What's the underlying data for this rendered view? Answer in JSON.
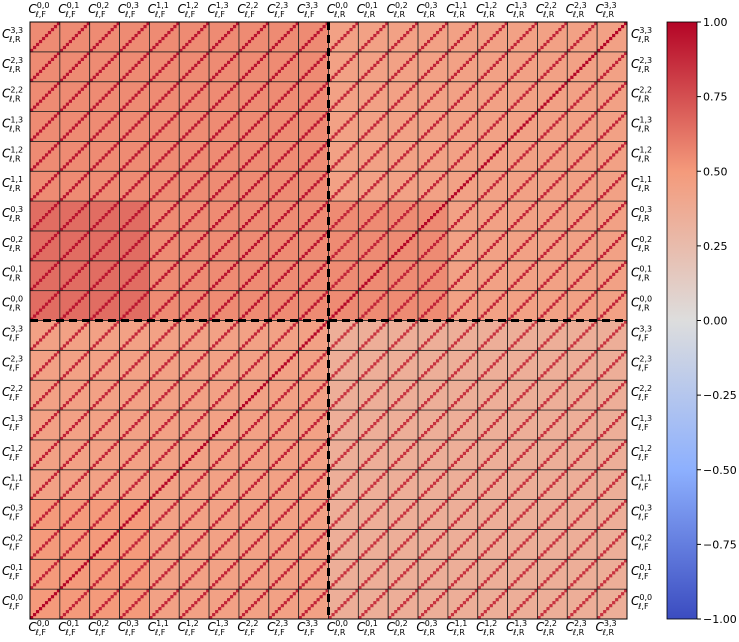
{
  "chart_data": {
    "type": "heatmap",
    "colormap": "coolwarm",
    "clim": [
      -1,
      1
    ],
    "categories": [
      {
        "main": "C",
        "sup": "0,0",
        "sub": "ℓ,F"
      },
      {
        "main": "C",
        "sup": "0,1",
        "sub": "ℓ,F"
      },
      {
        "main": "C",
        "sup": "0,2",
        "sub": "ℓ,F"
      },
      {
        "main": "C",
        "sup": "0,3",
        "sub": "ℓ,F"
      },
      {
        "main": "C",
        "sup": "1,1",
        "sub": "ℓ,F"
      },
      {
        "main": "C",
        "sup": "1,2",
        "sub": "ℓ,F"
      },
      {
        "main": "C",
        "sup": "1,3",
        "sub": "ℓ,F"
      },
      {
        "main": "C",
        "sup": "2,2",
        "sub": "ℓ,F"
      },
      {
        "main": "C",
        "sup": "2,3",
        "sub": "ℓ,F"
      },
      {
        "main": "C",
        "sup": "3,3",
        "sub": "ℓ,F"
      },
      {
        "main": "C",
        "sup": "0,0",
        "sub": "ℓ,R"
      },
      {
        "main": "C",
        "sup": "0,1",
        "sub": "ℓ,R"
      },
      {
        "main": "C",
        "sup": "0,2",
        "sub": "ℓ,R"
      },
      {
        "main": "C",
        "sup": "0,3",
        "sub": "ℓ,R"
      },
      {
        "main": "C",
        "sup": "1,1",
        "sub": "ℓ,R"
      },
      {
        "main": "C",
        "sup": "1,2",
        "sub": "ℓ,R"
      },
      {
        "main": "C",
        "sup": "1,3",
        "sub": "ℓ,R"
      },
      {
        "main": "C",
        "sup": "2,2",
        "sub": "ℓ,R"
      },
      {
        "main": "C",
        "sup": "2,3",
        "sub": "ℓ,R"
      },
      {
        "main": "C",
        "sup": "3,3",
        "sub": "ℓ,R"
      }
    ],
    "values": [
      [
        0.5,
        0.5,
        0.5,
        0.5,
        0.45,
        0.45,
        0.45,
        0.45,
        0.45,
        0.45,
        0.35,
        0.35,
        0.35,
        0.35,
        0.35,
        0.35,
        0.35,
        0.35,
        0.35,
        0.35
      ],
      [
        0.5,
        0.5,
        0.5,
        0.5,
        0.45,
        0.45,
        0.45,
        0.45,
        0.45,
        0.45,
        0.35,
        0.35,
        0.35,
        0.35,
        0.35,
        0.35,
        0.35,
        0.35,
        0.35,
        0.35
      ],
      [
        0.5,
        0.5,
        0.5,
        0.5,
        0.45,
        0.45,
        0.45,
        0.45,
        0.45,
        0.45,
        0.35,
        0.35,
        0.35,
        0.35,
        0.35,
        0.35,
        0.35,
        0.35,
        0.35,
        0.35
      ],
      [
        0.5,
        0.5,
        0.5,
        0.5,
        0.45,
        0.45,
        0.45,
        0.45,
        0.45,
        0.45,
        0.35,
        0.35,
        0.35,
        0.35,
        0.35,
        0.35,
        0.35,
        0.35,
        0.35,
        0.35
      ],
      [
        0.45,
        0.45,
        0.45,
        0.45,
        0.45,
        0.45,
        0.45,
        0.45,
        0.45,
        0.45,
        0.35,
        0.35,
        0.35,
        0.35,
        0.35,
        0.35,
        0.35,
        0.35,
        0.35,
        0.35
      ],
      [
        0.45,
        0.45,
        0.45,
        0.45,
        0.45,
        0.45,
        0.45,
        0.45,
        0.45,
        0.45,
        0.35,
        0.35,
        0.35,
        0.35,
        0.35,
        0.35,
        0.35,
        0.35,
        0.35,
        0.35
      ],
      [
        0.45,
        0.45,
        0.45,
        0.45,
        0.45,
        0.45,
        0.45,
        0.45,
        0.45,
        0.45,
        0.35,
        0.35,
        0.35,
        0.35,
        0.35,
        0.35,
        0.35,
        0.35,
        0.35,
        0.35
      ],
      [
        0.45,
        0.45,
        0.45,
        0.45,
        0.45,
        0.45,
        0.45,
        0.45,
        0.45,
        0.45,
        0.35,
        0.35,
        0.35,
        0.35,
        0.35,
        0.35,
        0.35,
        0.35,
        0.35,
        0.35
      ],
      [
        0.45,
        0.45,
        0.45,
        0.45,
        0.45,
        0.45,
        0.45,
        0.45,
        0.45,
        0.45,
        0.35,
        0.35,
        0.35,
        0.35,
        0.35,
        0.35,
        0.35,
        0.35,
        0.35,
        0.35
      ],
      [
        0.45,
        0.45,
        0.45,
        0.45,
        0.45,
        0.45,
        0.45,
        0.45,
        0.45,
        0.45,
        0.35,
        0.35,
        0.35,
        0.35,
        0.35,
        0.35,
        0.35,
        0.35,
        0.35,
        0.35
      ],
      [
        0.65,
        0.65,
        0.65,
        0.65,
        0.55,
        0.55,
        0.55,
        0.55,
        0.55,
        0.55,
        0.55,
        0.55,
        0.55,
        0.55,
        0.45,
        0.45,
        0.45,
        0.45,
        0.45,
        0.45
      ],
      [
        0.65,
        0.65,
        0.65,
        0.65,
        0.55,
        0.55,
        0.55,
        0.55,
        0.55,
        0.55,
        0.55,
        0.55,
        0.55,
        0.55,
        0.45,
        0.45,
        0.45,
        0.45,
        0.45,
        0.45
      ],
      [
        0.65,
        0.65,
        0.65,
        0.65,
        0.55,
        0.55,
        0.55,
        0.55,
        0.55,
        0.55,
        0.55,
        0.55,
        0.55,
        0.55,
        0.45,
        0.45,
        0.45,
        0.45,
        0.45,
        0.45
      ],
      [
        0.65,
        0.65,
        0.65,
        0.65,
        0.55,
        0.55,
        0.55,
        0.55,
        0.55,
        0.55,
        0.55,
        0.55,
        0.55,
        0.55,
        0.45,
        0.45,
        0.45,
        0.45,
        0.45,
        0.45
      ],
      [
        0.55,
        0.55,
        0.55,
        0.55,
        0.55,
        0.55,
        0.55,
        0.55,
        0.55,
        0.55,
        0.45,
        0.45,
        0.45,
        0.45,
        0.45,
        0.45,
        0.45,
        0.45,
        0.45,
        0.45
      ],
      [
        0.55,
        0.55,
        0.55,
        0.55,
        0.55,
        0.55,
        0.55,
        0.55,
        0.55,
        0.55,
        0.45,
        0.45,
        0.45,
        0.45,
        0.45,
        0.45,
        0.45,
        0.45,
        0.45,
        0.45
      ],
      [
        0.55,
        0.55,
        0.55,
        0.55,
        0.55,
        0.55,
        0.55,
        0.55,
        0.55,
        0.55,
        0.45,
        0.45,
        0.45,
        0.45,
        0.45,
        0.45,
        0.45,
        0.45,
        0.45,
        0.45
      ],
      [
        0.55,
        0.55,
        0.55,
        0.55,
        0.55,
        0.55,
        0.55,
        0.55,
        0.55,
        0.55,
        0.45,
        0.45,
        0.45,
        0.45,
        0.45,
        0.45,
        0.45,
        0.45,
        0.45,
        0.45
      ],
      [
        0.55,
        0.55,
        0.55,
        0.55,
        0.55,
        0.55,
        0.55,
        0.55,
        0.55,
        0.55,
        0.45,
        0.45,
        0.45,
        0.45,
        0.45,
        0.45,
        0.45,
        0.45,
        0.45,
        0.45
      ],
      [
        0.55,
        0.55,
        0.55,
        0.55,
        0.55,
        0.55,
        0.55,
        0.55,
        0.55,
        0.55,
        0.45,
        0.45,
        0.45,
        0.45,
        0.45,
        0.45,
        0.45,
        0.45,
        0.45,
        0.45
      ]
    ],
    "diagonal": [
      [
        1,
        0.9,
        0.9,
        0.9,
        0.9,
        0.9,
        0.9,
        0.9,
        0.9,
        0.9,
        0.85,
        0.85,
        0.85,
        0.85,
        0.85,
        0.85,
        0.85,
        0.85,
        0.85,
        0.85
      ],
      [
        0.9,
        1,
        0.9,
        0.9,
        0.9,
        0.9,
        0.9,
        0.9,
        0.9,
        0.9,
        0.85,
        0.85,
        0.85,
        0.85,
        0.85,
        0.85,
        0.85,
        0.85,
        0.85,
        0.85
      ],
      [
        0.9,
        0.9,
        1,
        0.9,
        0.9,
        0.9,
        0.9,
        0.9,
        0.9,
        0.9,
        0.85,
        0.85,
        0.85,
        0.85,
        0.85,
        0.85,
        0.85,
        0.85,
        0.85,
        0.85
      ],
      [
        0.9,
        0.9,
        0.9,
        1,
        0.9,
        0.9,
        0.9,
        0.9,
        0.9,
        0.9,
        0.85,
        0.85,
        0.85,
        0.85,
        0.85,
        0.85,
        0.85,
        0.85,
        0.85,
        0.85
      ],
      [
        0.9,
        0.9,
        0.9,
        0.9,
        1,
        0.9,
        0.9,
        0.9,
        0.9,
        0.9,
        0.85,
        0.85,
        0.85,
        0.85,
        0.85,
        0.85,
        0.85,
        0.85,
        0.85,
        0.85
      ],
      [
        0.9,
        0.9,
        0.9,
        0.9,
        0.9,
        1,
        0.9,
        0.9,
        0.9,
        0.9,
        0.85,
        0.85,
        0.85,
        0.85,
        0.85,
        0.85,
        0.85,
        0.85,
        0.85,
        0.85
      ],
      [
        0.9,
        0.9,
        0.9,
        0.9,
        0.9,
        0.9,
        1,
        0.9,
        0.9,
        0.9,
        0.85,
        0.85,
        0.85,
        0.85,
        0.85,
        0.85,
        0.85,
        0.85,
        0.85,
        0.85
      ],
      [
        0.9,
        0.9,
        0.9,
        0.9,
        0.9,
        0.9,
        0.9,
        1,
        0.9,
        0.9,
        0.85,
        0.85,
        0.85,
        0.85,
        0.85,
        0.85,
        0.85,
        0.85,
        0.85,
        0.85
      ],
      [
        0.9,
        0.9,
        0.9,
        0.9,
        0.9,
        0.9,
        0.9,
        0.9,
        1,
        0.9,
        0.85,
        0.85,
        0.85,
        0.85,
        0.85,
        0.85,
        0.85,
        0.85,
        0.85,
        0.85
      ],
      [
        0.9,
        0.9,
        0.9,
        0.9,
        0.9,
        0.9,
        0.9,
        0.9,
        0.9,
        1,
        0.85,
        0.85,
        0.85,
        0.85,
        0.85,
        0.85,
        0.85,
        0.85,
        0.85,
        0.85
      ],
      [
        0.95,
        0.95,
        0.95,
        0.95,
        0.95,
        0.95,
        0.95,
        0.95,
        0.95,
        0.95,
        1,
        0.9,
        0.9,
        0.9,
        0.9,
        0.9,
        0.9,
        0.9,
        0.9,
        0.9
      ],
      [
        0.95,
        0.95,
        0.95,
        0.95,
        0.95,
        0.95,
        0.95,
        0.95,
        0.95,
        0.95,
        0.9,
        1,
        0.9,
        0.9,
        0.9,
        0.9,
        0.9,
        0.9,
        0.9,
        0.9
      ],
      [
        0.95,
        0.95,
        0.95,
        0.95,
        0.95,
        0.95,
        0.95,
        0.95,
        0.95,
        0.95,
        0.9,
        0.9,
        1,
        0.9,
        0.9,
        0.9,
        0.9,
        0.9,
        0.9,
        0.9
      ],
      [
        0.95,
        0.95,
        0.95,
        0.95,
        0.95,
        0.95,
        0.95,
        0.95,
        0.95,
        0.95,
        0.9,
        0.9,
        0.9,
        1,
        0.9,
        0.9,
        0.9,
        0.9,
        0.9,
        0.9
      ],
      [
        0.95,
        0.95,
        0.95,
        0.95,
        0.95,
        0.95,
        0.95,
        0.95,
        0.95,
        0.95,
        0.9,
        0.9,
        0.9,
        0.9,
        1,
        0.9,
        0.9,
        0.9,
        0.9,
        0.9
      ],
      [
        0.95,
        0.95,
        0.95,
        0.95,
        0.95,
        0.95,
        0.95,
        0.95,
        0.95,
        0.95,
        0.9,
        0.9,
        0.9,
        0.9,
        0.9,
        1,
        0.9,
        0.9,
        0.9,
        0.9
      ],
      [
        0.95,
        0.95,
        0.95,
        0.95,
        0.95,
        0.95,
        0.95,
        0.95,
        0.95,
        0.95,
        0.9,
        0.9,
        0.9,
        0.9,
        0.9,
        0.9,
        1,
        0.9,
        0.9,
        0.9
      ],
      [
        0.95,
        0.95,
        0.95,
        0.95,
        0.95,
        0.95,
        0.95,
        0.95,
        0.95,
        0.95,
        0.9,
        0.9,
        0.9,
        0.9,
        0.9,
        0.9,
        0.9,
        1,
        0.9,
        0.9
      ],
      [
        0.95,
        0.95,
        0.95,
        0.95,
        0.95,
        0.95,
        0.95,
        0.95,
        0.95,
        0.95,
        0.9,
        0.9,
        0.9,
        0.9,
        0.9,
        0.9,
        0.9,
        0.9,
        1,
        0.9
      ],
      [
        0.95,
        0.95,
        0.95,
        0.95,
        0.95,
        0.95,
        0.95,
        0.95,
        0.95,
        0.95,
        0.9,
        0.9,
        0.9,
        0.9,
        0.9,
        0.9,
        0.9,
        0.9,
        0.9,
        1
      ]
    ],
    "colorbar_ticks": [
      {
        "value": -1,
        "label": "−1.00"
      },
      {
        "value": -0.75,
        "label": "−0.75"
      },
      {
        "value": -0.5,
        "label": "−0.50"
      },
      {
        "value": -0.25,
        "label": "−0.25"
      },
      {
        "value": 0,
        "label": "0.00"
      },
      {
        "value": 0.25,
        "label": "0.25"
      },
      {
        "value": 0.5,
        "label": "0.50"
      },
      {
        "value": 0.75,
        "label": "0.75"
      },
      {
        "value": 1,
        "label": "1.00"
      }
    ]
  }
}
